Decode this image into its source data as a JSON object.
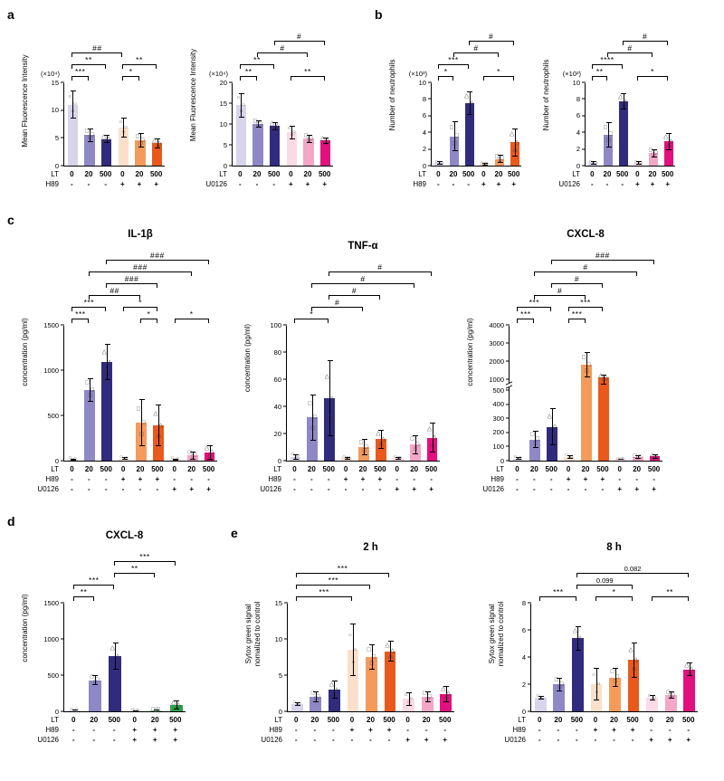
{
  "panels": {
    "a": "a",
    "b": "b",
    "c": "c",
    "d": "d",
    "e": "e"
  },
  "chart_data": [
    {
      "id": "mfi-h89",
      "type": "bar",
      "title": "",
      "unit": "(×10⁴)",
      "ylabel": "Mean Fluorescence Intensity",
      "ylim": [
        0,
        15
      ],
      "yticks": [
        0,
        5,
        10,
        15
      ],
      "values": [
        11,
        5.5,
        4.8,
        6.8,
        4.5,
        4
      ],
      "errors": [
        2.5,
        1.2,
        0.7,
        1.8,
        1.3,
        0.9
      ],
      "bar_colors": [
        "#d7d4ec",
        "#8e88c6",
        "#312b7e",
        "#fae0ca",
        "#f49b5b",
        "#e9591c"
      ],
      "x_rows": [
        {
          "label": "LT",
          "cells": [
            "0",
            "20",
            "500",
            "0",
            "20",
            "500"
          ]
        },
        {
          "label": "H89",
          "cells": [
            "-",
            "-",
            "-",
            "+",
            "+",
            "+"
          ]
        }
      ],
      "sig": [
        {
          "from": 0,
          "to": 1,
          "label": "***",
          "level": 1
        },
        {
          "from": 0,
          "to": 2,
          "label": "**",
          "level": 2
        },
        {
          "from": 0,
          "to": 3,
          "label": "##",
          "level": 3
        },
        {
          "from": 3,
          "to": 4,
          "label": "*",
          "level": 1
        },
        {
          "from": 3,
          "to": 5,
          "label": "**",
          "level": 2
        }
      ]
    },
    {
      "id": "mfi-u0126",
      "type": "bar",
      "title": "",
      "unit": "(×10⁴)",
      "ylabel": "Mean Fluorescence Intensity",
      "ylim": [
        0,
        20
      ],
      "yticks": [
        0,
        5,
        10,
        15,
        20
      ],
      "values": [
        14.5,
        10,
        9.5,
        8,
        6.5,
        6
      ],
      "errors": [
        3,
        0.8,
        1,
        1.6,
        1,
        0.8
      ],
      "bar_colors": [
        "#d7d4ec",
        "#8e88c6",
        "#312b7e",
        "#fbdae6",
        "#f3a6c6",
        "#e2107e"
      ],
      "x_rows": [
        {
          "label": "LT",
          "cells": [
            "0",
            "20",
            "500",
            "0",
            "20",
            "500"
          ]
        },
        {
          "label": "U0126",
          "cells": [
            "-",
            "-",
            "-",
            "+",
            "+",
            "+"
          ]
        }
      ],
      "sig": [
        {
          "from": 0,
          "to": 1,
          "label": "**",
          "level": 1
        },
        {
          "from": 0,
          "to": 2,
          "label": "**",
          "level": 2
        },
        {
          "from": 1,
          "to": 4,
          "label": "#",
          "level": 3
        },
        {
          "from": 2,
          "to": 5,
          "label": "#",
          "level": 4
        },
        {
          "from": 3,
          "to": 5,
          "label": "**",
          "level": 1
        }
      ]
    },
    {
      "id": "neutrophils-h89",
      "type": "bar",
      "title": "",
      "unit": "(×10³)",
      "ylabel": "Number of neutrophils",
      "ylim": [
        0,
        10
      ],
      "yticks": [
        0,
        2,
        4,
        6,
        8,
        10
      ],
      "values": [
        0.3,
        3.5,
        7.5,
        0.2,
        0.8,
        2.8
      ],
      "errors": [
        0.2,
        1.8,
        1.4,
        0.15,
        0.5,
        1.7
      ],
      "bar_colors": [
        "#d7d4ec",
        "#8e88c6",
        "#312b7e",
        "#fae0ca",
        "#f49b5b",
        "#e9591c"
      ],
      "x_rows": [
        {
          "label": "LT",
          "cells": [
            "0",
            "20",
            "500",
            "0",
            "20",
            "500"
          ]
        },
        {
          "label": "H89",
          "cells": [
            "-",
            "-",
            "-",
            "+",
            "+",
            "+"
          ]
        }
      ],
      "sig": [
        {
          "from": 0,
          "to": 1,
          "label": "*",
          "level": 1
        },
        {
          "from": 0,
          "to": 2,
          "label": "***",
          "level": 2
        },
        {
          "from": 1,
          "to": 4,
          "label": "#",
          "level": 3
        },
        {
          "from": 2,
          "to": 5,
          "label": "#",
          "level": 4
        },
        {
          "from": 3,
          "to": 5,
          "label": "*",
          "level": 1
        }
      ]
    },
    {
      "id": "neutrophils-u0126",
      "type": "bar",
      "title": "",
      "unit": "(×10³)",
      "ylabel": "Number of neutrophils",
      "ylim": [
        0,
        10
      ],
      "yticks": [
        0,
        2,
        4,
        6,
        8,
        10
      ],
      "values": [
        0.3,
        3.7,
        7.7,
        0.3,
        1.5,
        2.9
      ],
      "errors": [
        0.2,
        1.5,
        1.0,
        0.2,
        0.5,
        1.0
      ],
      "bar_colors": [
        "#d7d4ec",
        "#8e88c6",
        "#312b7e",
        "#fbdae6",
        "#f3a6c6",
        "#e2107e"
      ],
      "x_rows": [
        {
          "label": "LT",
          "cells": [
            "0",
            "20",
            "500",
            "0",
            "20",
            "500"
          ]
        },
        {
          "label": "U0126",
          "cells": [
            "-",
            "-",
            "-",
            "+",
            "+",
            "+"
          ]
        }
      ],
      "sig": [
        {
          "from": 0,
          "to": 1,
          "label": "**",
          "level": 1
        },
        {
          "from": 0,
          "to": 2,
          "label": "****",
          "level": 2
        },
        {
          "from": 1,
          "to": 4,
          "label": "#",
          "level": 3
        },
        {
          "from": 2,
          "to": 5,
          "label": "#",
          "level": 4
        },
        {
          "from": 3,
          "to": 5,
          "label": "*",
          "level": 1
        }
      ]
    },
    {
      "id": "il1b",
      "type": "bar",
      "title": "IL-1β",
      "unit": "",
      "ylabel": "concentration (pg/ml)",
      "ylim": [
        0,
        1500
      ],
      "yticks": [
        0,
        500,
        1000,
        1500
      ],
      "values": [
        15,
        780,
        1090,
        25,
        420,
        390,
        15,
        60,
        95
      ],
      "errors": [
        10,
        130,
        200,
        15,
        260,
        230,
        10,
        45,
        80
      ],
      "bar_colors": [
        "#d7d4ec",
        "#8e88c6",
        "#312b7e",
        "#fae0ca",
        "#f49b5b",
        "#e9591c",
        "#fbdae6",
        "#f3a6c6",
        "#e2107e"
      ],
      "x_rows": [
        {
          "label": "LT",
          "cells": [
            "0",
            "20",
            "500",
            "0",
            "20",
            "500",
            "0",
            "20",
            "500"
          ]
        },
        {
          "label": "H89",
          "cells": [
            "-",
            "-",
            "-",
            "+",
            "+",
            "+",
            "-",
            "-",
            "-"
          ]
        },
        {
          "label": "U0126",
          "cells": [
            "-",
            "-",
            "-",
            "-",
            "-",
            "-",
            "+",
            "+",
            "+"
          ]
        }
      ],
      "sig": [
        {
          "from": 0,
          "to": 1,
          "label": "***",
          "level": 1
        },
        {
          "from": 0,
          "to": 2,
          "label": "***",
          "level": 2
        },
        {
          "from": 4,
          "to": 5,
          "label": "*",
          "level": 1
        },
        {
          "from": 3,
          "to": 5,
          "label": "*",
          "level": 2
        },
        {
          "from": 6,
          "to": 8,
          "label": "*",
          "level": 1
        },
        {
          "from": 1,
          "to": 4,
          "label": "##",
          "level": 3
        },
        {
          "from": 2,
          "to": 5,
          "label": "###",
          "level": 4
        },
        {
          "from": 1,
          "to": 7,
          "label": "###",
          "level": 5
        },
        {
          "from": 2,
          "to": 8,
          "label": "###",
          "level": 6
        }
      ]
    },
    {
      "id": "tnfa",
      "type": "bar",
      "title": "TNF-α",
      "unit": "",
      "ylabel": "concentration (pg/ml)",
      "ylim": [
        0,
        100
      ],
      "yticks": [
        0,
        20,
        40,
        60,
        80,
        100
      ],
      "values": [
        3,
        32,
        46,
        2,
        10,
        16,
        2,
        12,
        17
      ],
      "errors": [
        2,
        17,
        28,
        1,
        6,
        7,
        1,
        7,
        11
      ],
      "bar_colors": [
        "#d7d4ec",
        "#8e88c6",
        "#312b7e",
        "#fae0ca",
        "#f49b5b",
        "#e9591c",
        "#fbdae6",
        "#f3a6c6",
        "#e2107e"
      ],
      "x_rows": [
        {
          "label": "LT",
          "cells": [
            "0",
            "20",
            "500",
            "0",
            "20",
            "500",
            "0",
            "20",
            "500"
          ]
        },
        {
          "label": "H89",
          "cells": [
            "-",
            "-",
            "-",
            "+",
            "+",
            "+",
            "-",
            "-",
            "-"
          ]
        },
        {
          "label": "U0126",
          "cells": [
            "-",
            "-",
            "-",
            "-",
            "-",
            "-",
            "+",
            "+",
            "+"
          ]
        }
      ],
      "sig": [
        {
          "from": 0,
          "to": 2,
          "label": "*",
          "level": 1
        },
        {
          "from": 1,
          "to": 4,
          "label": "#",
          "level": 2
        },
        {
          "from": 2,
          "to": 5,
          "label": "#",
          "level": 3
        },
        {
          "from": 1,
          "to": 7,
          "label": "#",
          "level": 4
        },
        {
          "from": 2,
          "to": 8,
          "label": "#",
          "level": 5
        }
      ]
    },
    {
      "id": "cxcl8-supernatant",
      "type": "bar",
      "title": "CXCL-8",
      "unit": "",
      "ylabel": "concentration (pg/ml)",
      "ylim": [
        0,
        4000
      ],
      "yticks": [
        0,
        100,
        200,
        300,
        400,
        500,
        1000,
        2000,
        3000,
        4000
      ],
      "ybreak": {
        "low": 500,
        "high": 1000,
        "low_frac": 0.52,
        "high_frac": 0.6
      },
      "values": [
        15,
        150,
        240,
        25,
        1800,
        1100,
        10,
        25,
        30
      ],
      "errors": [
        8,
        60,
        130,
        15,
        700,
        160,
        5,
        12,
        15
      ],
      "bar_colors": [
        "#d7d4ec",
        "#8e88c6",
        "#312b7e",
        "#fae0ca",
        "#f49b5b",
        "#e9591c",
        "#fbdae6",
        "#f3a6c6",
        "#e2107e"
      ],
      "x_rows": [
        {
          "label": "LT",
          "cells": [
            "0",
            "20",
            "500",
            "0",
            "20",
            "500",
            "0",
            "20",
            "500"
          ]
        },
        {
          "label": "H89",
          "cells": [
            "-",
            "-",
            "-",
            "+",
            "+",
            "+",
            "-",
            "-",
            "-"
          ]
        },
        {
          "label": "U0126",
          "cells": [
            "-",
            "-",
            "-",
            "-",
            "-",
            "-",
            "+",
            "+",
            "+"
          ]
        }
      ],
      "sig": [
        {
          "from": 0,
          "to": 1,
          "label": "***",
          "level": 1
        },
        {
          "from": 0,
          "to": 2,
          "label": "***",
          "level": 2
        },
        {
          "from": 3,
          "to": 4,
          "label": "***",
          "level": 1
        },
        {
          "from": 3,
          "to": 5,
          "label": "***",
          "level": 2
        },
        {
          "from": 1,
          "to": 4,
          "label": "#",
          "level": 3
        },
        {
          "from": 2,
          "to": 5,
          "label": "#",
          "level": 4
        },
        {
          "from": 1,
          "to": 7,
          "label": "#",
          "level": 5
        },
        {
          "from": 2,
          "to": 8,
          "label": "###",
          "level": 6
        }
      ]
    },
    {
      "id": "cxcl8-d",
      "type": "bar",
      "title": "CXCL-8",
      "unit": "",
      "ylabel": "concentration (pg/ml)",
      "ylim": [
        0,
        1500
      ],
      "yticks": [
        0,
        500,
        1000,
        1500
      ],
      "values": [
        15,
        430,
        760,
        10,
        15,
        85
      ],
      "errors": [
        8,
        70,
        190,
        5,
        8,
        60
      ],
      "bar_colors": [
        "#d7d4ec",
        "#8e88c6",
        "#312b7e",
        "#e4f3e5",
        "#a6d7aa",
        "#2fa14b"
      ],
      "x_rows": [
        {
          "label": "LT",
          "cells": [
            "0",
            "20",
            "500",
            "0",
            "20",
            "500"
          ]
        },
        {
          "label": "H89",
          "cells": [
            "-",
            "-",
            "-",
            "+",
            "+",
            "+"
          ]
        },
        {
          "label": "U0126",
          "cells": [
            "-",
            "-",
            "-",
            "+",
            "+",
            "+"
          ]
        }
      ],
      "sig": [
        {
          "from": 0,
          "to": 1,
          "label": "**",
          "level": 1
        },
        {
          "from": 0,
          "to": 2,
          "label": "***",
          "level": 2
        },
        {
          "from": 2,
          "to": 4,
          "label": "**",
          "level": 3
        },
        {
          "from": 2,
          "to": 5,
          "label": "***",
          "level": 4
        }
      ]
    },
    {
      "id": "sytox-2h",
      "type": "bar",
      "title": "2 h",
      "unit": "",
      "ylabel": "Sytox green signal\nnomalized to control",
      "ylim": [
        0,
        15
      ],
      "yticks": [
        0,
        5,
        10,
        15
      ],
      "values": [
        1,
        2,
        3,
        8.5,
        7.5,
        8.3,
        1.7,
        2,
        2.4
      ],
      "errors": [
        0.3,
        0.7,
        1.3,
        3.6,
        1.8,
        1.4,
        0.9,
        0.8,
        1.1
      ],
      "bar_colors": [
        "#d7d4ec",
        "#8e88c6",
        "#312b7e",
        "#fae0ca",
        "#f49b5b",
        "#e9591c",
        "#fbdae6",
        "#f3a6c6",
        "#e2107e"
      ],
      "x_rows": [
        {
          "label": "LT",
          "cells": [
            "0",
            "20",
            "500",
            "0",
            "20",
            "500",
            "0",
            "20",
            "500"
          ]
        },
        {
          "label": "H89",
          "cells": [
            "-",
            "-",
            "-",
            "+",
            "+",
            "+",
            "-",
            "-",
            "-"
          ]
        },
        {
          "label": "U0126",
          "cells": [
            "-",
            "-",
            "-",
            "-",
            "-",
            "-",
            "+",
            "+",
            "+"
          ]
        }
      ],
      "sig": [
        {
          "from": 0,
          "to": 3,
          "label": "***",
          "level": 1
        },
        {
          "from": 0,
          "to": 4,
          "label": "***",
          "level": 2
        },
        {
          "from": 0,
          "to": 5,
          "label": "***",
          "level": 3
        }
      ]
    },
    {
      "id": "sytox-8h",
      "type": "bar",
      "title": "8 h",
      "unit": "",
      "ylabel": "Sytox green signal\nnomalized to control",
      "ylim": [
        0,
        8
      ],
      "yticks": [
        0,
        2,
        4,
        6,
        8
      ],
      "values": [
        1,
        2,
        5.4,
        2,
        2.5,
        3.8,
        1,
        1.2,
        3.1
      ],
      "errors": [
        0.15,
        0.5,
        0.9,
        1.2,
        0.7,
        1.3,
        0.2,
        0.25,
        0.5
      ],
      "bar_colors": [
        "#d7d4ec",
        "#8e88c6",
        "#312b7e",
        "#fae0ca",
        "#f49b5b",
        "#e9591c",
        "#fbdae6",
        "#f3a6c6",
        "#e2107e"
      ],
      "x_rows": [
        {
          "label": "LT",
          "cells": [
            "0",
            "20",
            "500",
            "0",
            "20",
            "500",
            "0",
            "20",
            "500"
          ]
        },
        {
          "label": "H89",
          "cells": [
            "-",
            "-",
            "-",
            "+",
            "+",
            "+",
            "-",
            "-",
            "-"
          ]
        },
        {
          "label": "U0126",
          "cells": [
            "-",
            "-",
            "-",
            "-",
            "-",
            "-",
            "+",
            "+",
            "+"
          ]
        }
      ],
      "sig": [
        {
          "from": 0,
          "to": 2,
          "label": "***",
          "level": 1
        },
        {
          "from": 3,
          "to": 5,
          "label": "*",
          "level": 1
        },
        {
          "from": 6,
          "to": 8,
          "label": "**",
          "level": 1
        },
        {
          "from": 2,
          "to": 5,
          "label": "0.099",
          "level": 2
        },
        {
          "from": 2,
          "to": 8,
          "label": "0.082",
          "level": 3
        }
      ]
    }
  ]
}
